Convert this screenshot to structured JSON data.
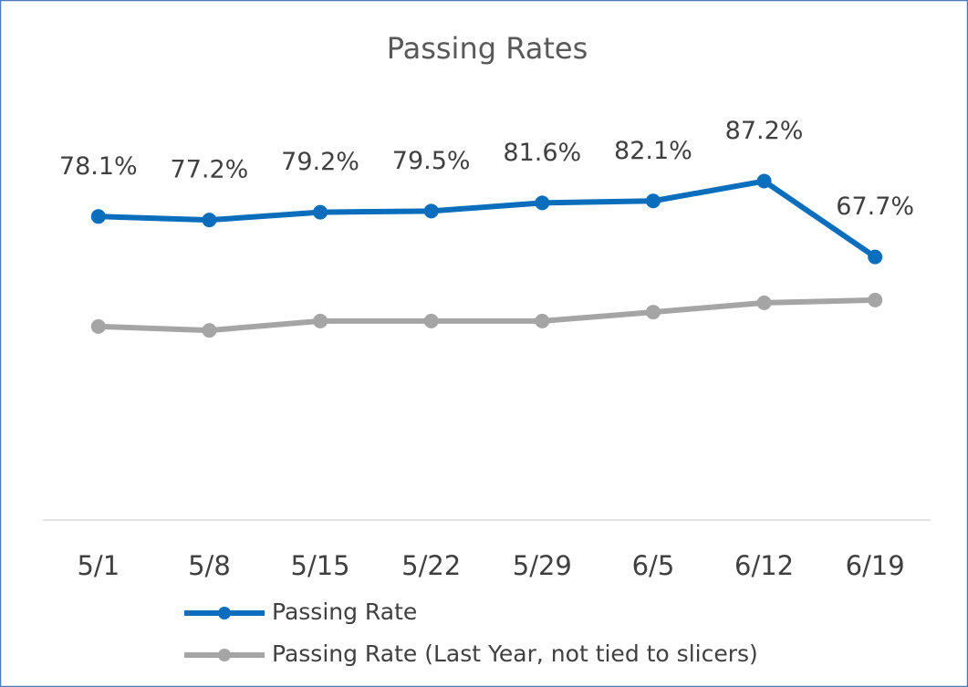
{
  "chart_data": {
    "type": "line",
    "title": "Passing Rates",
    "categories": [
      "5/1",
      "5/8",
      "5/15",
      "5/22",
      "5/29",
      "6/5",
      "6/12",
      "6/19"
    ],
    "series": [
      {
        "name": "Passing Rate",
        "color": "#0a6ebd",
        "values": [
          78.1,
          77.2,
          79.2,
          79.5,
          81.6,
          82.1,
          87.2,
          67.7
        ],
        "value_labels": [
          "78.1%",
          "77.2%",
          "79.2%",
          "79.5%",
          "81.6%",
          "82.1%",
          "87.2%",
          "67.7%"
        ]
      },
      {
        "name": "Passing Rate (Last Year, not tied to slicers)",
        "color": "#a5a5a5",
        "values": [
          49.8,
          48.8,
          51.2,
          51.2,
          51.2,
          53.5,
          55.9,
          56.6
        ]
      }
    ],
    "ylim": [
      0,
      100
    ],
    "grid": false,
    "legend": "bottom"
  }
}
